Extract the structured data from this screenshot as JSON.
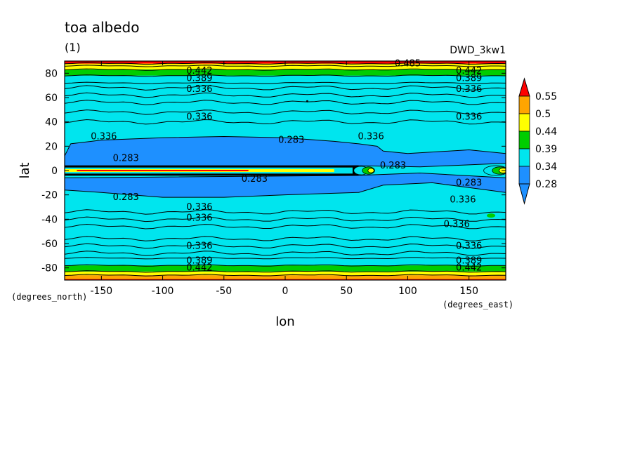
{
  "chart_data": {
    "type": "heatmap",
    "title": "toa albedo",
    "subtitle": "(1)",
    "dataset_label": "DWD_3kw1",
    "xlabel": "lon",
    "ylabel": "lat",
    "x_units": "(degrees_east)",
    "y_units": "(degrees_north)",
    "xlim": [
      -180,
      180
    ],
    "ylim": [
      -90,
      90
    ],
    "x_ticks": [
      -150,
      -100,
      -50,
      0,
      50,
      100,
      150
    ],
    "y_ticks": [
      -80,
      -60,
      -40,
      -20,
      0,
      20,
      40,
      60,
      80
    ],
    "colorbar": {
      "levels": [
        0.28,
        0.34,
        0.39,
        0.44,
        0.5,
        0.55
      ],
      "labels": [
        "0.55",
        "0.5",
        "0.44",
        "0.39",
        "0.34",
        "0.28"
      ],
      "colors": {
        "below": "#1e90ff",
        "c1": "#1e90ff",
        "c2": "#00e5ee",
        "c3": "#00cd00",
        "c4": "#ffff00",
        "c5": "#ffa500",
        "above": "#ff0000"
      }
    },
    "contour_labels": [
      {
        "text": "0.485",
        "lon": 100,
        "lat": 88
      },
      {
        "text": "0.442",
        "lon": -70,
        "lat": 82
      },
      {
        "text": "0.389",
        "lon": -70,
        "lat": 76
      },
      {
        "text": "0.336",
        "lon": -70,
        "lat": 67
      },
      {
        "text": "0.442",
        "lon": 150,
        "lat": 82
      },
      {
        "text": "0.389",
        "lon": 150,
        "lat": 76
      },
      {
        "text": "0.336",
        "lon": 150,
        "lat": 67
      },
      {
        "text": "0.336",
        "lon": -70,
        "lat": 44
      },
      {
        "text": "0.336",
        "lon": 150,
        "lat": 44
      },
      {
        "text": "0.336",
        "lon": -148,
        "lat": 28
      },
      {
        "text": "0.283",
        "lon": 5,
        "lat": 25
      },
      {
        "text": "0.336",
        "lon": 70,
        "lat": 28
      },
      {
        "text": "0.283",
        "lon": -130,
        "lat": 10
      },
      {
        "text": "0.283",
        "lon": 88,
        "lat": 4
      },
      {
        "text": "0.283",
        "lon": -25,
        "lat": -7
      },
      {
        "text": "0.283",
        "lon": 150,
        "lat": -10
      },
      {
        "text": "0.283",
        "lon": -130,
        "lat": -22
      },
      {
        "text": "0.336",
        "lon": 145,
        "lat": -24
      },
      {
        "text": "0.336",
        "lon": -70,
        "lat": -30
      },
      {
        "text": "0.336",
        "lon": -70,
        "lat": -39
      },
      {
        "text": "0.336",
        "lon": 140,
        "lat": -44
      },
      {
        "text": "0.336",
        "lon": -70,
        "lat": -62
      },
      {
        "text": "0.336",
        "lon": 150,
        "lat": -62
      },
      {
        "text": "0.389",
        "lon": -70,
        "lat": -74
      },
      {
        "text": "0.389",
        "lon": 150,
        "lat": -74
      },
      {
        "text": "0.442",
        "lon": -70,
        "lat": -80
      },
      {
        "text": "0.442",
        "lon": 150,
        "lat": -80
      }
    ]
  }
}
